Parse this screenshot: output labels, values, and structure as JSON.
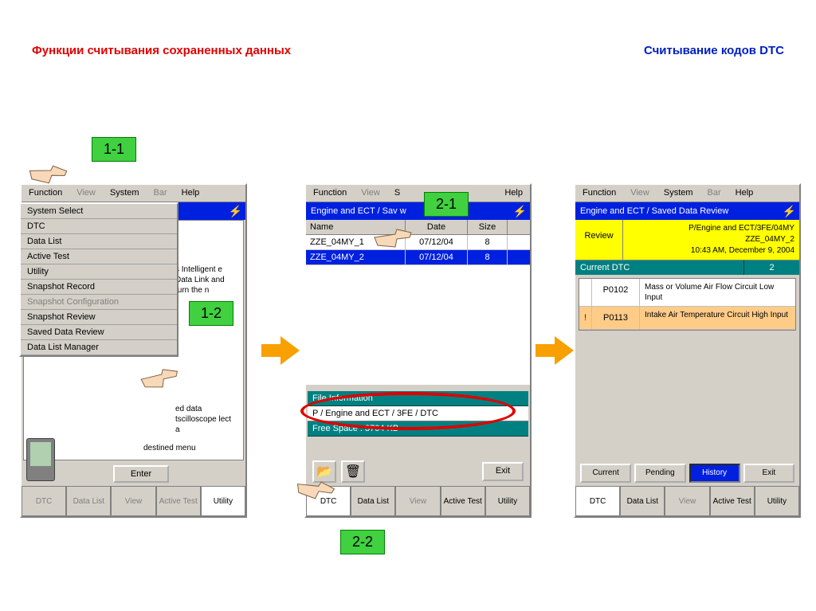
{
  "titles": {
    "left": "Функции считывания сохраненных данных",
    "right": "Считывание кодов DTC"
  },
  "menu": {
    "function": "Function",
    "view": "View",
    "system": "System",
    "bar": "Bar",
    "help": "Help"
  },
  "dropdown": {
    "items": [
      {
        "label": "System Select",
        "dim": false
      },
      {
        "label": "DTC",
        "dim": false
      },
      {
        "label": "Data List",
        "dim": false
      },
      {
        "label": "Active Test",
        "dim": false
      },
      {
        "label": "Utility",
        "dim": false
      },
      {
        "label": "Snapshot Record",
        "dim": false
      },
      {
        "label": "Snapshot Configuration",
        "dim": true
      },
      {
        "label": "Snapshot Review",
        "dim": false
      },
      {
        "label": "Saved Data Review",
        "dim": false
      },
      {
        "label": "Data List Manager",
        "dim": false
      }
    ]
  },
  "dev1": {
    "bluebar": "",
    "info1": "s Intelligent e Data Link and turn the n",
    "info2": "ed data tscilloscope lect a",
    "dest": "destined menu",
    "enter": "Enter"
  },
  "dev2": {
    "bluebar": "Engine and ECT / Saved Data Review",
    "bluebar_trunc": "Engine and ECT / Sav             w",
    "cols": {
      "name": "Name",
      "date": "Date",
      "size": "Size"
    },
    "rows": [
      {
        "name": "ZZE_04MY_1",
        "date": "07/12/04",
        "size": "8",
        "sel": false
      },
      {
        "name": "ZZE_04MY_2",
        "date": "07/12/04",
        "size": "8",
        "sel": true
      }
    ],
    "fileinfo": "File Information",
    "filepath": "P / Engine and ECT / 3FE / DTC",
    "freespace": "Free Space : 3704 KB",
    "exit": "Exit"
  },
  "dev3": {
    "bluebar": "Engine and ECT / Saved Data Review",
    "review": "Review",
    "detail1": "P/Engine and ECT/3FE/04MY",
    "detail2": "ZZE_04MY_2",
    "detail3": "10:43 AM, December 9, 2004",
    "curdtc": "Current DTC",
    "count": "2",
    "dtc": [
      {
        "code": "P0102",
        "desc": "Mass or Volume Air Flow Circuit Low Input",
        "warn": false
      },
      {
        "code": "P0113",
        "desc": "Intake Air Temperature Circuit High Input",
        "warn": true
      }
    ],
    "btns": {
      "current": "Current",
      "pending": "Pending",
      "history": "History",
      "exit": "Exit"
    }
  },
  "tabs": {
    "dtc": "DTC",
    "datalist": "Data\nList",
    "view": "View",
    "activetest": "Active\nTest",
    "utility": "Utility"
  },
  "steps": {
    "s11": "1-1",
    "s12": "1-2",
    "s21": "2-1",
    "s22": "2-2"
  }
}
